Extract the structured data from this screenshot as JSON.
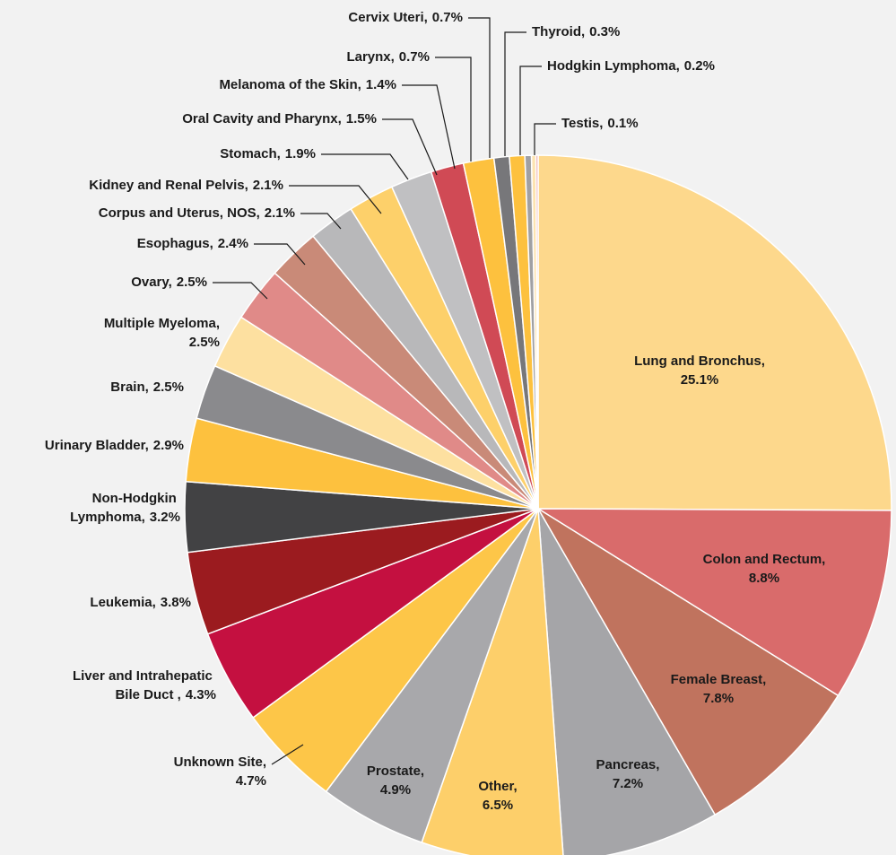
{
  "chart_data": {
    "type": "pie",
    "categories": [
      "Lung and Bronchus,",
      "Colon and Rectum,",
      "Female Breast,",
      "Pancreas,",
      "Other,",
      "Prostate,",
      "Unknown Site,",
      "Liver and Intrahepatic Bile Duct ,",
      "Leukemia,",
      "Non-Hodgkin Lymphoma,",
      "Urinary Bladder,",
      "Brain,",
      "Multiple Myeloma,",
      "Ovary,",
      "Esophagus,",
      "Corpus and Uterus, NOS,",
      "Kidney and Renal Pelvis,",
      "Stomach,",
      "Oral Cavity and Pharynx,",
      "Melanoma of the Skin,",
      "Larynx,",
      "Cervix Uteri,",
      "Thyroid,",
      "Hodgkin Lymphoma,",
      "Testis,"
    ],
    "values": [
      25.1,
      8.8,
      7.8,
      7.2,
      6.5,
      4.9,
      4.7,
      4.3,
      3.8,
      3.2,
      2.9,
      2.5,
      2.5,
      2.5,
      2.4,
      2.1,
      2.1,
      1.9,
      1.5,
      1.4,
      0.7,
      0.7,
      0.3,
      0.2,
      0.1
    ],
    "value_labels": [
      "25.1%",
      "8.8%",
      "7.8%",
      "7.2%",
      "6.5%",
      "4.9%",
      "4.7%",
      "4.3%",
      "3.8%",
      "3.2%",
      "2.9%",
      "2.5%",
      "2.5%",
      "2.5%",
      "2.4%",
      "2.1%",
      "2.1%",
      "1.9%",
      "1.5%",
      "1.4%",
      "0.7%",
      "0.7%",
      "0.3%",
      "0.2%",
      "0.1%"
    ],
    "colors": [
      "#fdd88c",
      "#d96b6b",
      "#c0735e",
      "#a5a5a8",
      "#fdcf6a",
      "#a8a8ab",
      "#fdc648",
      "#c41040",
      "#9b1b1f",
      "#424244",
      "#fdc13e",
      "#8a8a8d",
      "#fde0a0",
      "#e08a88",
      "#c98a78",
      "#b8b8ba",
      "#fdd06a",
      "#c0c0c2",
      "#d04a55",
      "#fdc13e",
      "#77777a",
      "#fdc13e",
      "#a0a0a3",
      "#fde3b0",
      "#e8a0a0"
    ]
  }
}
